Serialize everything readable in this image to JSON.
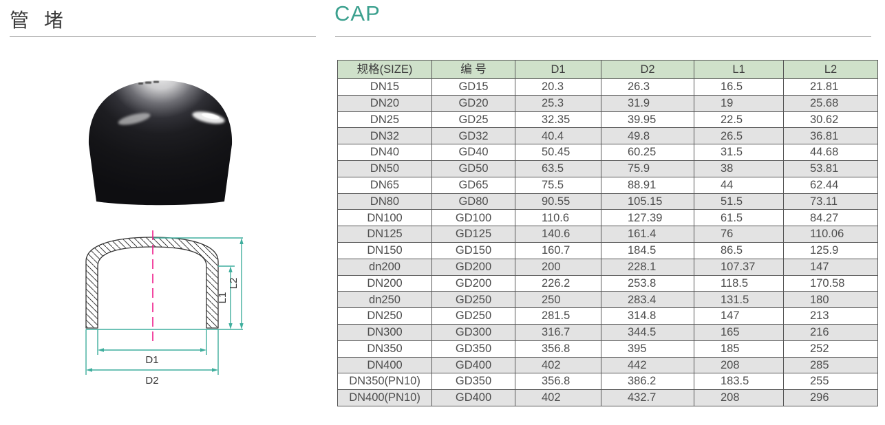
{
  "header": {
    "title_cn": "管 堵",
    "title_en": "CAP"
  },
  "diagram": {
    "labels": {
      "d1": "D1",
      "d2": "D2",
      "l1": "L1",
      "l2": "L2"
    }
  },
  "table": {
    "headers": [
      "规格(SIZE)",
      "编 号",
      "D1",
      "D2",
      "L1",
      "L2"
    ],
    "rows": [
      [
        "DN15",
        "GD15",
        "20.3",
        "26.3",
        "16.5",
        "21.81"
      ],
      [
        "DN20",
        "GD20",
        "25.3",
        "31.9",
        "19",
        "25.68"
      ],
      [
        "DN25",
        "GD25",
        "32.35",
        "39.95",
        "22.5",
        "30.62"
      ],
      [
        "DN32",
        "GD32",
        "40.4",
        "49.8",
        "26.5",
        "36.81"
      ],
      [
        "DN40",
        "GD40",
        "50.45",
        "60.25",
        "31.5",
        "44.68"
      ],
      [
        "DN50",
        "GD50",
        "63.5",
        "75.9",
        "38",
        "53.81"
      ],
      [
        "DN65",
        "GD65",
        "75.5",
        "88.91",
        "44",
        "62.44"
      ],
      [
        "DN80",
        "GD80",
        "90.55",
        "105.15",
        "51.5",
        "73.11"
      ],
      [
        "DN100",
        "GD100",
        "110.6",
        "127.39",
        "61.5",
        "84.27"
      ],
      [
        "DN125",
        "GD125",
        "140.6",
        "161.4",
        "76",
        "110.06"
      ],
      [
        "DN150",
        "GD150",
        "160.7",
        "184.5",
        "86.5",
        "125.9"
      ],
      [
        "dn200",
        "GD200",
        "200",
        "228.1",
        "107.37",
        "147"
      ],
      [
        "DN200",
        "GD200",
        "226.2",
        "253.8",
        "118.5",
        "170.58"
      ],
      [
        "dn250",
        "GD250",
        "250",
        "283.4",
        "131.5",
        "180"
      ],
      [
        "DN250",
        "GD250",
        "281.5",
        "314.8",
        "147",
        "213"
      ],
      [
        "DN300",
        "GD300",
        "316.7",
        "344.5",
        "165",
        "216"
      ],
      [
        "DN350",
        "GD350",
        "356.8",
        "395",
        "185",
        "252"
      ],
      [
        "DN400",
        "GD400",
        "402",
        "442",
        "208",
        "285"
      ],
      [
        "DN350(PN10)",
        "GD350",
        "356.8",
        "386.2",
        "183.5",
        "255"
      ],
      [
        "DN400(PN10)",
        "GD400",
        "402",
        "432.7",
        "208",
        "296"
      ]
    ]
  },
  "colors": {
    "accent_teal": "#3BA08E",
    "table_header_bg": "#CFE1CA",
    "row_stripe": "#E3E3E3",
    "dimension_line": "#3FAE9D",
    "centerline_pink": "#EE1C8A",
    "title_text": "#3B3B3B"
  }
}
